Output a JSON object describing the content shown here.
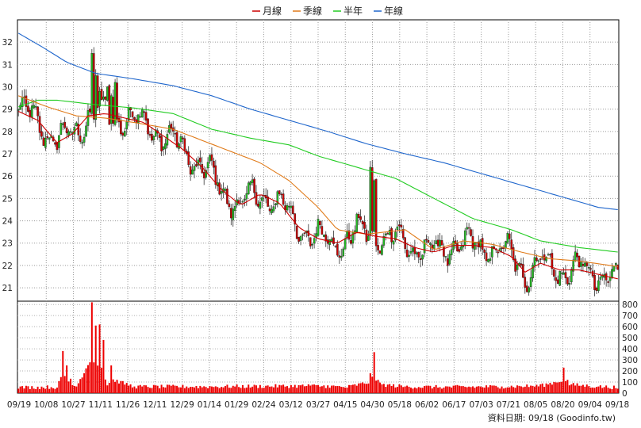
{
  "chart_data": {
    "type": "candlestick",
    "title": "",
    "legend": {
      "placement": "top-center",
      "entries": [
        {
          "key": "ma_month",
          "name": "月線",
          "color": "#cc0000"
        },
        {
          "key": "ma_quarter",
          "name": "季線",
          "color": "#e07b1a"
        },
        {
          "key": "ma_halfyear",
          "name": "半年",
          "color": "#22cc22"
        },
        {
          "key": "ma_year",
          "name": "年線",
          "color": "#1f66cc"
        }
      ]
    },
    "price_axis": {
      "ylim": [
        20.4,
        33
      ],
      "ticks": [
        21,
        22,
        23,
        24,
        25,
        26,
        27,
        28,
        29,
        30,
        31,
        32
      ]
    },
    "volume_axis": {
      "ylim": [
        0,
        830
      ],
      "ticks": [
        0,
        100,
        200,
        300,
        400,
        500,
        600,
        700,
        800
      ]
    },
    "x_labels": [
      "09/19",
      "10/08",
      "10/27",
      "11/11",
      "11/26",
      "12/11",
      "12/29",
      "01/14",
      "01/29",
      "02/24",
      "03/12",
      "03/27",
      "04/15",
      "04/30",
      "05/18",
      "06/02",
      "06/17",
      "07/03",
      "07/21",
      "08/05",
      "08/20",
      "09/04",
      "09/18"
    ],
    "candle_up_color": "#22bb22",
    "candle_down_color": "#cc0000",
    "volume_color": "#ee0000",
    "series": [
      {
        "name": "年線",
        "key": "ma_year",
        "points": [
          [
            0,
            32.4
          ],
          [
            12,
            31.8
          ],
          [
            25,
            31.1
          ],
          [
            40,
            30.6
          ],
          [
            60,
            30.35
          ],
          [
            80,
            30.05
          ],
          [
            100,
            29.6
          ],
          [
            120,
            29.0
          ],
          [
            140,
            28.5
          ],
          [
            160,
            28.0
          ],
          [
            180,
            27.45
          ],
          [
            200,
            27.0
          ],
          [
            220,
            26.6
          ],
          [
            240,
            26.1
          ],
          [
            260,
            25.6
          ],
          [
            280,
            25.1
          ],
          [
            300,
            24.6
          ],
          [
            310,
            24.5
          ]
        ]
      },
      {
        "name": "半年",
        "key": "ma_halfyear",
        "points": [
          [
            0,
            29.1
          ],
          [
            10,
            29.4
          ],
          [
            20,
            29.4
          ],
          [
            40,
            29.2
          ],
          [
            60,
            29.05
          ],
          [
            80,
            28.8
          ],
          [
            100,
            28.1
          ],
          [
            120,
            27.7
          ],
          [
            140,
            27.4
          ],
          [
            155,
            26.9
          ],
          [
            175,
            26.4
          ],
          [
            195,
            25.9
          ],
          [
            215,
            25.0
          ],
          [
            235,
            24.1
          ],
          [
            255,
            23.6
          ],
          [
            270,
            23.1
          ],
          [
            290,
            22.8
          ],
          [
            310,
            22.6
          ]
        ]
      },
      {
        "name": "季線",
        "key": "ma_quarter",
        "points": [
          [
            0,
            29.6
          ],
          [
            15,
            29.1
          ],
          [
            30,
            28.7
          ],
          [
            45,
            28.6
          ],
          [
            60,
            28.4
          ],
          [
            80,
            28.1
          ],
          [
            95,
            27.6
          ],
          [
            110,
            27.1
          ],
          [
            125,
            26.6
          ],
          [
            140,
            25.8
          ],
          [
            155,
            24.6
          ],
          [
            165,
            23.6
          ],
          [
            180,
            23.4
          ],
          [
            200,
            23.6
          ],
          [
            215,
            22.7
          ],
          [
            230,
            23.1
          ],
          [
            245,
            22.95
          ],
          [
            260,
            22.6
          ],
          [
            275,
            22.3
          ],
          [
            290,
            22.2
          ],
          [
            310,
            21.95
          ]
        ]
      },
      {
        "name": "月線",
        "key": "ma_month",
        "points": [
          [
            0,
            28.9
          ],
          [
            10,
            28.5
          ],
          [
            20,
            27.5
          ],
          [
            28,
            27.9
          ],
          [
            36,
            28.7
          ],
          [
            45,
            28.8
          ],
          [
            55,
            28.6
          ],
          [
            65,
            28.4
          ],
          [
            75,
            27.8
          ],
          [
            85,
            27.2
          ],
          [
            95,
            26.4
          ],
          [
            105,
            25.4
          ],
          [
            115,
            24.7
          ],
          [
            125,
            25.2
          ],
          [
            135,
            24.8
          ],
          [
            145,
            23.7
          ],
          [
            155,
            23.2
          ],
          [
            165,
            23.0
          ],
          [
            175,
            23.5
          ],
          [
            185,
            23.3
          ],
          [
            195,
            23.2
          ],
          [
            205,
            22.8
          ],
          [
            215,
            22.6
          ],
          [
            225,
            22.9
          ],
          [
            235,
            22.9
          ],
          [
            245,
            22.8
          ],
          [
            255,
            22.4
          ],
          [
            262,
            21.7
          ],
          [
            270,
            22.1
          ],
          [
            280,
            21.8
          ],
          [
            290,
            21.8
          ],
          [
            300,
            21.6
          ],
          [
            310,
            21.4
          ]
        ]
      }
    ],
    "volume_profile": [
      [
        0,
        40
      ],
      [
        20,
        50
      ],
      [
        23,
        380
      ],
      [
        25,
        250
      ],
      [
        27,
        130
      ],
      [
        30,
        60
      ],
      [
        38,
        820
      ],
      [
        40,
        610
      ],
      [
        42,
        620
      ],
      [
        44,
        480
      ],
      [
        46,
        70
      ],
      [
        48,
        250
      ],
      [
        60,
        60
      ],
      [
        100,
        60
      ],
      [
        150,
        80
      ],
      [
        160,
        70
      ],
      [
        170,
        50
      ],
      [
        182,
        180
      ],
      [
        184,
        370
      ],
      [
        186,
        120
      ],
      [
        200,
        60
      ],
      [
        220,
        50
      ],
      [
        250,
        60
      ],
      [
        270,
        80
      ],
      [
        282,
        230
      ],
      [
        284,
        120
      ],
      [
        300,
        60
      ],
      [
        310,
        40
      ]
    ]
  },
  "source_note": "資料日期: 09/18 (Goodinfo.tw)"
}
